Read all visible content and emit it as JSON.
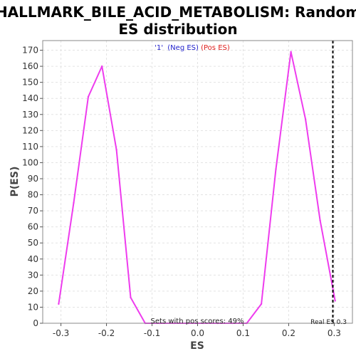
{
  "chart_data": {
    "type": "line",
    "title_line1": "HALLMARK_BILE_ACID_METABOLISM: Random",
    "title_line2": "ES distribution",
    "xlabel": "ES",
    "ylabel": "P(ES)",
    "xlim": [
      -0.34,
      0.34
    ],
    "ylim": [
      0,
      176
    ],
    "xticks": [
      -0.3,
      -0.2,
      -0.1,
      0.0,
      0.1,
      0.2,
      0.3
    ],
    "xtick_labels": [
      "-0.3",
      "-0.2",
      "-0.1",
      "0.0",
      "0.1",
      "0.2",
      "0.3"
    ],
    "yticks": [
      0,
      10,
      20,
      30,
      40,
      50,
      60,
      70,
      80,
      90,
      100,
      110,
      120,
      130,
      140,
      150,
      160,
      170
    ],
    "grid": true,
    "legend": {
      "label": "'1'",
      "neg": "(Neg ES)",
      "pos": "(Pos ES)",
      "label_color": "#1f1fcc",
      "neg_color": "#1f1fcc",
      "pos_color": "#e0201e",
      "placement": "top-center"
    },
    "series": [
      {
        "color": "#ee3cee",
        "x": [
          -0.305,
          -0.272,
          -0.24,
          -0.21,
          -0.178,
          -0.147,
          -0.115,
          -0.083,
          -0.052,
          -0.02,
          0.012,
          0.044,
          0.076,
          0.108,
          0.14,
          0.172,
          0.205,
          0.237,
          0.269,
          0.302
        ],
        "y": [
          12,
          75,
          141,
          160,
          108,
          16,
          0,
          0,
          0,
          0,
          0,
          0,
          0,
          0,
          12,
          96,
          169,
          127,
          64,
          14
        ]
      }
    ],
    "real_es": {
      "value": 0.297,
      "label": "Real ES 0.3"
    },
    "annotation": "Sets with pos scores: 49%",
    "colors": {
      "plot_background": "#ffffff",
      "grid": "#e3e3e3",
      "real_es_line": "#000000"
    }
  }
}
